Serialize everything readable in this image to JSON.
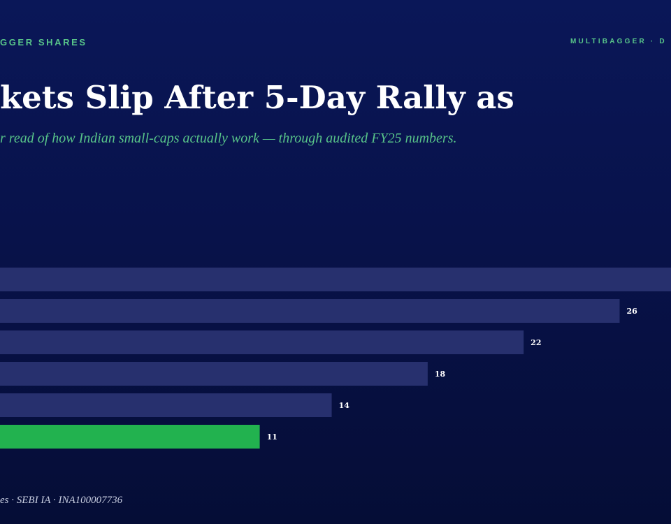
{
  "header": {
    "section_label": "GGER SHARES",
    "brand_label": "MULTIBAGGER · D"
  },
  "title": "kets Slip After 5-Day Rally as",
  "subtitle": "r read of how Indian small-caps actually work — through audited FY25 numbers.",
  "footer": "es · SEBI IA · INA100007736",
  "colors": {
    "bar": "#27306e",
    "highlight": "#22b24f",
    "label": "#ffffff",
    "accent": "#58c489"
  },
  "chart_data": {
    "type": "bar",
    "orientation": "horizontal",
    "xlim": [
      0,
      28.2
    ],
    "bars": [
      {
        "value": 28.2,
        "label": "",
        "highlight": false
      },
      {
        "value": 26,
        "label": "26",
        "highlight": false
      },
      {
        "value": 22,
        "label": "22",
        "highlight": false
      },
      {
        "value": 18,
        "label": "18",
        "highlight": false
      },
      {
        "value": 14,
        "label": "14",
        "highlight": false
      },
      {
        "value": 11,
        "label": "11",
        "highlight": true
      }
    ],
    "grid": false,
    "legend": "none"
  }
}
